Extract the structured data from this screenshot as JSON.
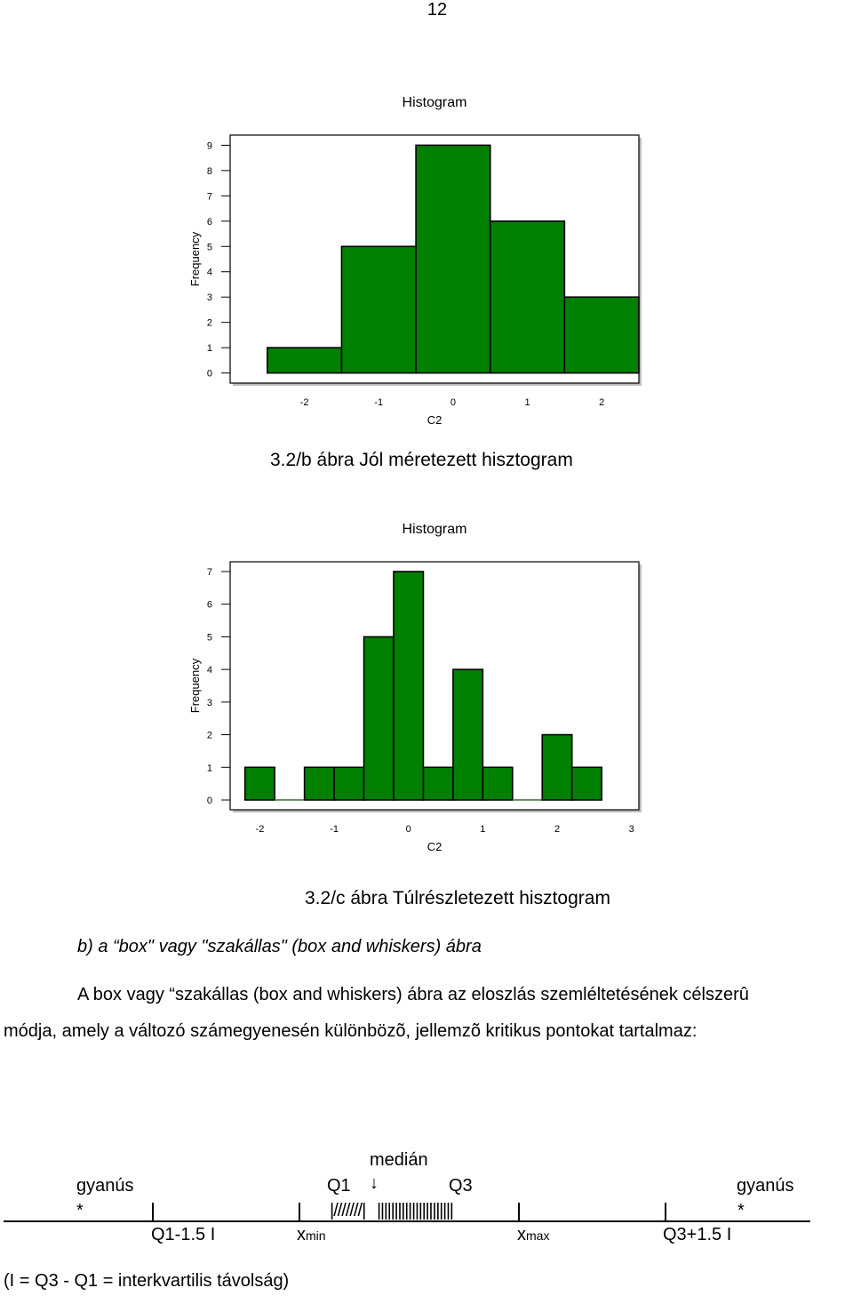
{
  "page_number": "12",
  "caption_b": "3.2/b ábra Jól méretezett hisztogram",
  "caption_c": "3.2/c ábra Túlrészletezett hisztogram",
  "section_heading": "b) a “box\" vagy \"szakállas\" (box and whiskers) ábra",
  "paragraph_line1": "A box vagy “szakállas (box and whiskers) ábra az eloszlás szemléltetésének célszerû",
  "paragraph_line2": "módja, amely a változó számegyenesén különbözõ, jellemzõ kritikus pontokat tartalmaz:",
  "chart_data": [
    {
      "type": "bar",
      "title": "Histogram",
      "xlabel": "C2",
      "ylabel": "Frequency",
      "bar_color": "#008000",
      "bins": [
        [
          -2.5,
          -1.5
        ],
        [
          -1.5,
          -0.5
        ],
        [
          -0.5,
          0.5
        ],
        [
          0.5,
          1.5
        ],
        [
          1.5,
          2.5
        ]
      ],
      "values": [
        1,
        5,
        9,
        6,
        3
      ],
      "xlim": [
        -3,
        2.5
      ],
      "ylim": [
        -0.4,
        9.4
      ],
      "xticks": [
        -2,
        -1,
        0,
        1,
        2
      ],
      "yticks": [
        0,
        1,
        2,
        3,
        4,
        5,
        6,
        7,
        8,
        9
      ],
      "grid": false
    },
    {
      "type": "bar",
      "title": "Histogram",
      "xlabel": "C2",
      "ylabel": "Frequency",
      "bar_color": "#008000",
      "bins": [
        [
          -2.2,
          -1.8
        ],
        [
          -1.8,
          -1.4
        ],
        [
          -1.4,
          -1.0
        ],
        [
          -1.0,
          -0.6
        ],
        [
          -0.6,
          -0.2
        ],
        [
          -0.2,
          0.2
        ],
        [
          0.2,
          0.6
        ],
        [
          0.6,
          1.0
        ],
        [
          1.0,
          1.4
        ],
        [
          1.4,
          1.8
        ],
        [
          1.8,
          2.2
        ],
        [
          2.2,
          2.6
        ]
      ],
      "values": [
        1,
        0,
        1,
        1,
        5,
        7,
        1,
        4,
        1,
        0,
        2,
        1
      ],
      "xlim": [
        -2.4,
        3.1
      ],
      "ylim": [
        -0.3,
        7.3
      ],
      "xticks": [
        -2,
        -1,
        0,
        1,
        2,
        3
      ],
      "yticks": [
        0,
        1,
        2,
        3,
        4,
        5,
        6,
        7
      ],
      "grid": false
    }
  ],
  "box_diagram": {
    "median_label": "medián",
    "suspect_left_label": "gyanús",
    "suspect_right_label": "gyanús",
    "outlier_left_mark": "*",
    "outlier_right_mark": "*",
    "q1_label": "Q1",
    "q3_label": "Q3",
    "arrow_glyph": "↓",
    "lower_fence_label": "Q1-1.5 I",
    "upper_fence_label": "Q3+1.5 I",
    "xmin_main": "x",
    "xmin_sub": "min",
    "xmax_main": "x",
    "xmax_sub": "max",
    "box_left_hatch": "|///////|",
    "box_right_hatch": "||||||||||||||||||||||",
    "definition": "(I = Q3 - Q1 = interkvartilis távolság)"
  }
}
